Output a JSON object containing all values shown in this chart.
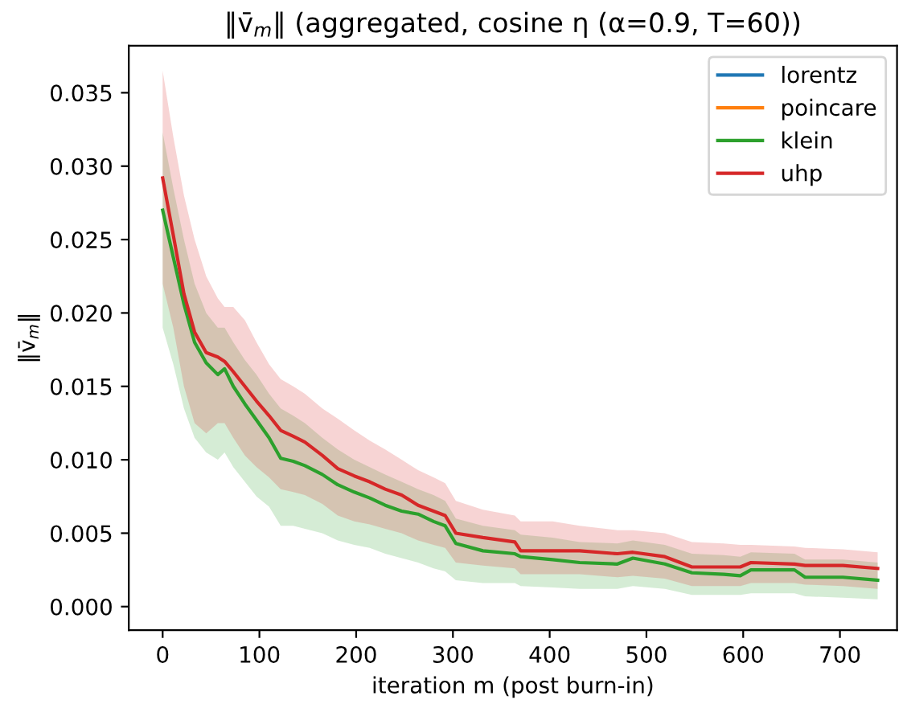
{
  "chart_data": {
    "type": "line",
    "title": "‖v̄$_{m}$‖ (aggregated, cosine η (α=0.9, T=60))",
    "xlabel": "iteration m (post burn-in)",
    "ylabel": "‖v̄$_{m}$‖",
    "x": [
      0,
      11,
      22,
      33,
      45,
      57,
      64,
      73,
      85,
      97,
      110,
      122,
      135,
      147,
      165,
      181,
      198,
      214,
      230,
      247,
      264,
      280,
      292,
      303,
      331,
      364,
      370,
      403,
      431,
      470,
      486,
      519,
      547,
      580,
      597,
      608,
      653,
      664,
      703,
      739
    ],
    "series": [
      {
        "name": "lorentz",
        "color": "#1f77b4",
        "values": [
          null,
          null,
          null,
          null,
          null,
          null,
          null,
          null,
          null,
          null,
          null,
          null,
          null,
          null,
          null,
          null,
          null,
          null,
          null,
          null,
          null,
          null,
          null,
          null,
          null,
          null,
          null,
          null,
          null,
          null,
          null,
          null,
          null,
          null,
          null,
          null,
          null,
          null,
          null,
          null
        ]
      },
      {
        "name": "poincare",
        "color": "#ff7f0e",
        "values": [
          null,
          null,
          null,
          null,
          null,
          null,
          null,
          null,
          null,
          null,
          null,
          null,
          null,
          null,
          null,
          null,
          null,
          null,
          null,
          null,
          null,
          null,
          null,
          null,
          null,
          null,
          null,
          null,
          null,
          null,
          null,
          null,
          null,
          null,
          null,
          null,
          null,
          null,
          null,
          null
        ]
      },
      {
        "name": "klein",
        "color": "#2ca02c",
        "values": [
          0.027,
          0.0238,
          0.0206,
          0.018,
          0.0166,
          0.0158,
          0.0162,
          0.015,
          0.0138,
          0.0127,
          0.0115,
          0.0101,
          0.0099,
          0.0096,
          0.009,
          0.0083,
          0.0078,
          0.0074,
          0.0069,
          0.0065,
          0.0063,
          0.0058,
          0.0055,
          0.0043,
          0.0038,
          0.0036,
          0.0034,
          0.0032,
          0.003,
          0.0029,
          0.0033,
          0.0029,
          0.0023,
          0.0022,
          0.0021,
          0.0025,
          0.0025,
          0.002,
          0.002,
          0.0018
        ],
        "upper": [
          0.0323,
          0.0285,
          0.025,
          0.022,
          0.02,
          0.019,
          0.019,
          0.018,
          0.0168,
          0.0158,
          0.0145,
          0.0135,
          0.013,
          0.0125,
          0.0115,
          0.0107,
          0.01,
          0.0095,
          0.009,
          0.0085,
          0.008,
          0.0076,
          0.0072,
          0.006,
          0.0055,
          0.0052,
          0.0049,
          0.0047,
          0.0044,
          0.0043,
          0.0045,
          0.0042,
          0.0036,
          0.0035,
          0.0034,
          0.0037,
          0.0036,
          0.0032,
          0.0032,
          0.003
        ],
        "lower": [
          0.019,
          0.0165,
          0.0135,
          0.0115,
          0.0105,
          0.01,
          0.0105,
          0.0095,
          0.0085,
          0.0075,
          0.0068,
          0.0055,
          0.0055,
          0.0053,
          0.005,
          0.0045,
          0.0042,
          0.004,
          0.0036,
          0.0033,
          0.003,
          0.0026,
          0.0024,
          0.0018,
          0.0016,
          0.0016,
          0.0014,
          0.0013,
          0.0012,
          0.0012,
          0.0014,
          0.0012,
          0.0008,
          0.0008,
          0.0008,
          0.0009,
          0.0009,
          0.0007,
          0.0006,
          0.0005
        ]
      },
      {
        "name": "uhp",
        "color": "#d62728",
        "values": [
          0.0292,
          0.0253,
          0.0213,
          0.0187,
          0.0173,
          0.017,
          0.0167,
          0.016,
          0.015,
          0.014,
          0.013,
          0.012,
          0.0116,
          0.0112,
          0.0103,
          0.0094,
          0.0089,
          0.0085,
          0.008,
          0.0076,
          0.0069,
          0.0065,
          0.0062,
          0.005,
          0.0047,
          0.0044,
          0.0038,
          0.0038,
          0.0038,
          0.0036,
          0.0037,
          0.0034,
          0.0027,
          0.0027,
          0.0027,
          0.003,
          0.0029,
          0.0028,
          0.0028,
          0.0026
        ],
        "upper": [
          0.0365,
          0.032,
          0.028,
          0.025,
          0.0225,
          0.021,
          0.0204,
          0.0204,
          0.0195,
          0.018,
          0.0165,
          0.0155,
          0.015,
          0.0145,
          0.0135,
          0.0128,
          0.012,
          0.0113,
          0.0107,
          0.01,
          0.0093,
          0.0088,
          0.0084,
          0.0072,
          0.0066,
          0.0062,
          0.0058,
          0.0058,
          0.0055,
          0.0052,
          0.0052,
          0.005,
          0.0044,
          0.0043,
          0.0042,
          0.0042,
          0.0041,
          0.004,
          0.0039,
          0.0037
        ],
        "lower": [
          0.022,
          0.019,
          0.015,
          0.0125,
          0.0118,
          0.0125,
          0.0125,
          0.0115,
          0.0103,
          0.0095,
          0.0088,
          0.008,
          0.0078,
          0.0076,
          0.007,
          0.0062,
          0.0058,
          0.0056,
          0.0053,
          0.005,
          0.0045,
          0.0042,
          0.004,
          0.003,
          0.0028,
          0.0026,
          0.0022,
          0.0022,
          0.0022,
          0.002,
          0.0021,
          0.0019,
          0.0014,
          0.0014,
          0.0014,
          0.0016,
          0.0016,
          0.0015,
          0.0014,
          0.0012
        ]
      }
    ],
    "xlim": [
      -35,
      759
    ],
    "ylim": [
      -0.0016,
      0.0382
    ],
    "xticks": [
      0,
      100,
      200,
      300,
      400,
      500,
      600,
      700
    ],
    "yticks": [
      {
        "value": 0,
        "label": "0.000"
      },
      {
        "value": 0.005,
        "label": "0.005"
      },
      {
        "value": 0.01,
        "label": "0.010"
      },
      {
        "value": 0.015,
        "label": "0.015"
      },
      {
        "value": 0.02,
        "label": "0.020"
      },
      {
        "value": 0.025,
        "label": "0.025"
      },
      {
        "value": 0.03,
        "label": "0.030"
      },
      {
        "value": 0.035,
        "label": "0.035"
      }
    ],
    "legend": "top right",
    "grid": false
  }
}
